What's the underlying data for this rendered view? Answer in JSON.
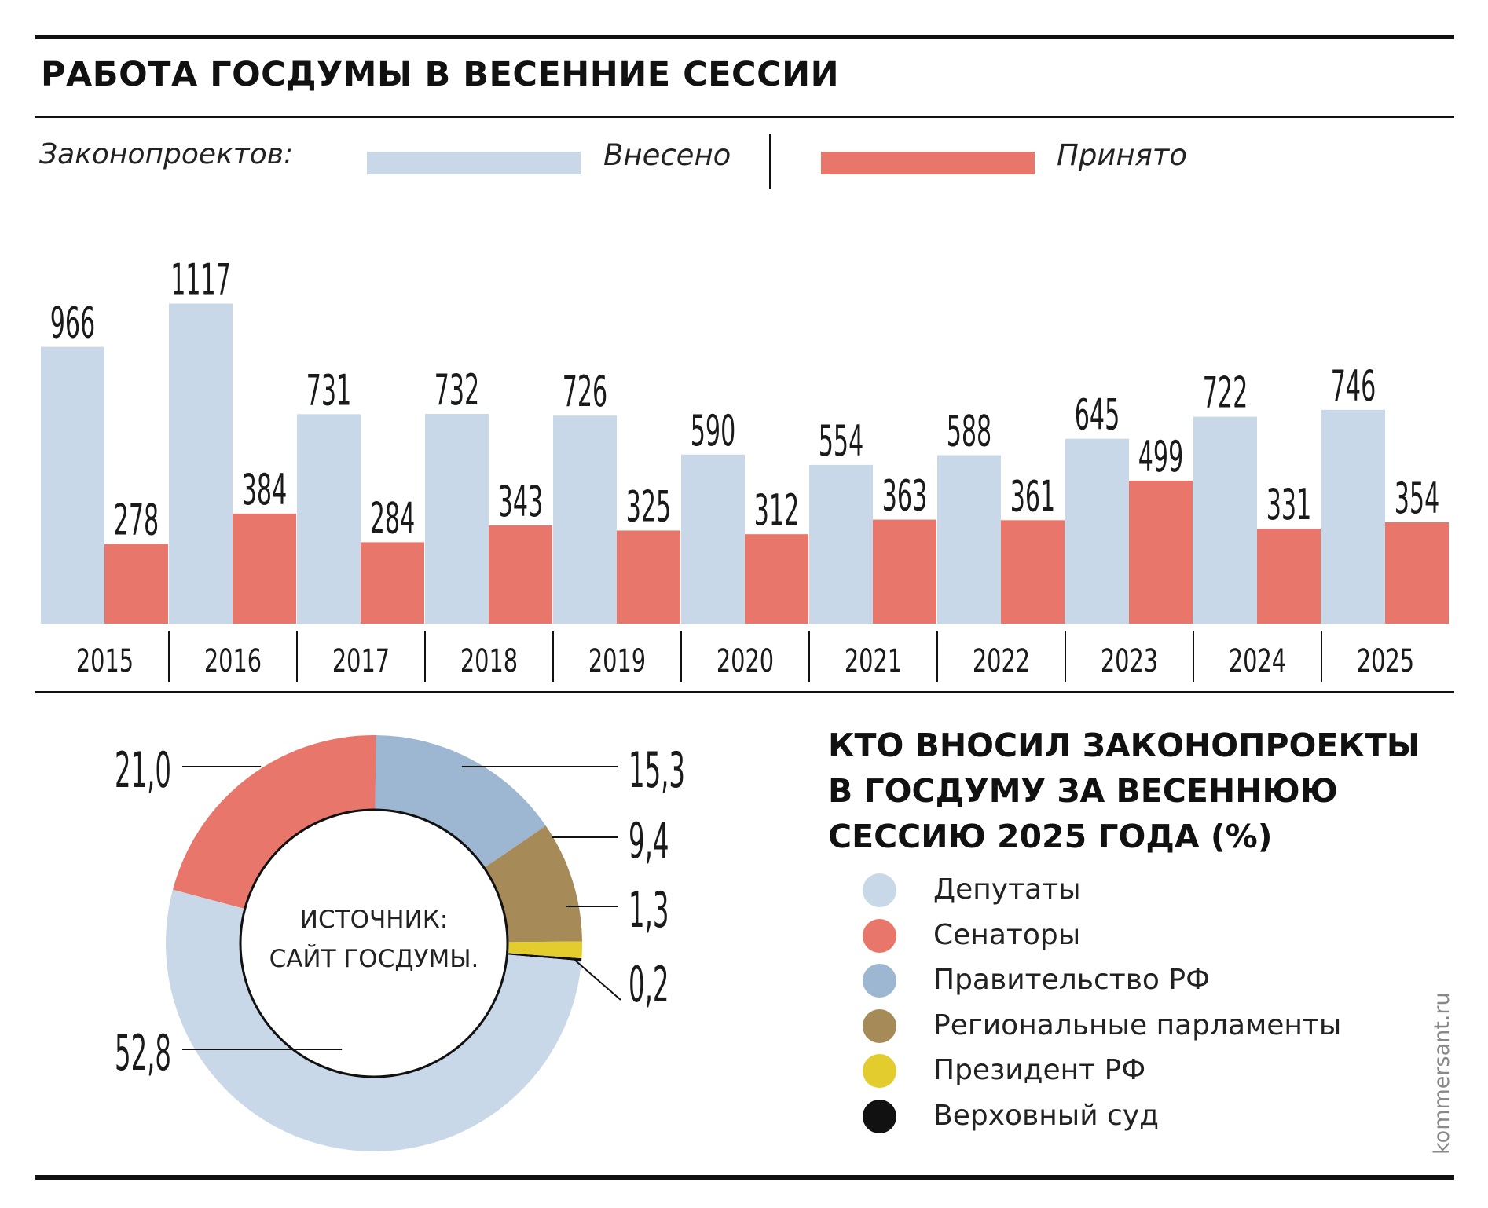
{
  "title": "РАБОТА ГОСДУМЫ В ВЕСЕННИЕ СЕССИИ",
  "legend": {
    "intro": "Законопроектов:",
    "items": [
      {
        "label": "Внесено",
        "color": "#c9d8e8"
      },
      {
        "label": "Принято",
        "color": "#e9766b"
      }
    ]
  },
  "chart_data": [
    {
      "type": "bar",
      "title": "РАБОТА ГОСДУМЫ В ВЕСЕННИЕ СЕССИИ",
      "categories": [
        "2015",
        "2016",
        "2017",
        "2018",
        "2019",
        "2020",
        "2021",
        "2022",
        "2023",
        "2024",
        "2025"
      ],
      "series": [
        {
          "name": "Внесено",
          "color": "#c9d8e8",
          "values": [
            966,
            1117,
            731,
            732,
            726,
            590,
            554,
            588,
            645,
            722,
            746
          ]
        },
        {
          "name": "Принято",
          "color": "#e9766b",
          "values": [
            278,
            384,
            284,
            343,
            325,
            312,
            363,
            361,
            499,
            331,
            354
          ]
        }
      ],
      "legend": "top",
      "grid": false,
      "data_labels": true
    },
    {
      "type": "pie",
      "title": "КТО ВНОСИЛ ЗАКОНОПРОЕКТЫ В ГОСДУМУ ЗА ВЕСЕННЮЮ СЕССИЮ 2025 ГОДА (%)",
      "slices": [
        {
          "name": "Депутаты",
          "value": 52.8,
          "label": "52,8",
          "color": "#c9d8e8"
        },
        {
          "name": "Сенаторы",
          "value": 21.0,
          "label": "21,0",
          "color": "#e9766b"
        },
        {
          "name": "Правительство РФ",
          "value": 15.3,
          "label": "15,3",
          "color": "#9db7d3"
        },
        {
          "name": "Региональные парламенты",
          "value": 9.4,
          "label": "9,4",
          "color": "#a68b59"
        },
        {
          "name": "Президент РФ",
          "value": 1.3,
          "label": "1,3",
          "color": "#e2cc2e"
        },
        {
          "name": "Верховный суд",
          "value": 0.2,
          "label": "0,2",
          "color": "#111111"
        }
      ],
      "legend": "right"
    }
  ],
  "pie_section": {
    "title_lines": [
      "КТО ВНОСИЛ ЗАКОНОПРОЕКТЫ",
      "В ГОСДУМУ ЗА ВЕСЕННЮЮ",
      "СЕССИЮ 2025 ГОДА (%)"
    ],
    "source_lines": [
      "ИСТОЧНИК:",
      "САЙТ ГОСДУМЫ."
    ]
  },
  "watermark": "kommersant.ru"
}
